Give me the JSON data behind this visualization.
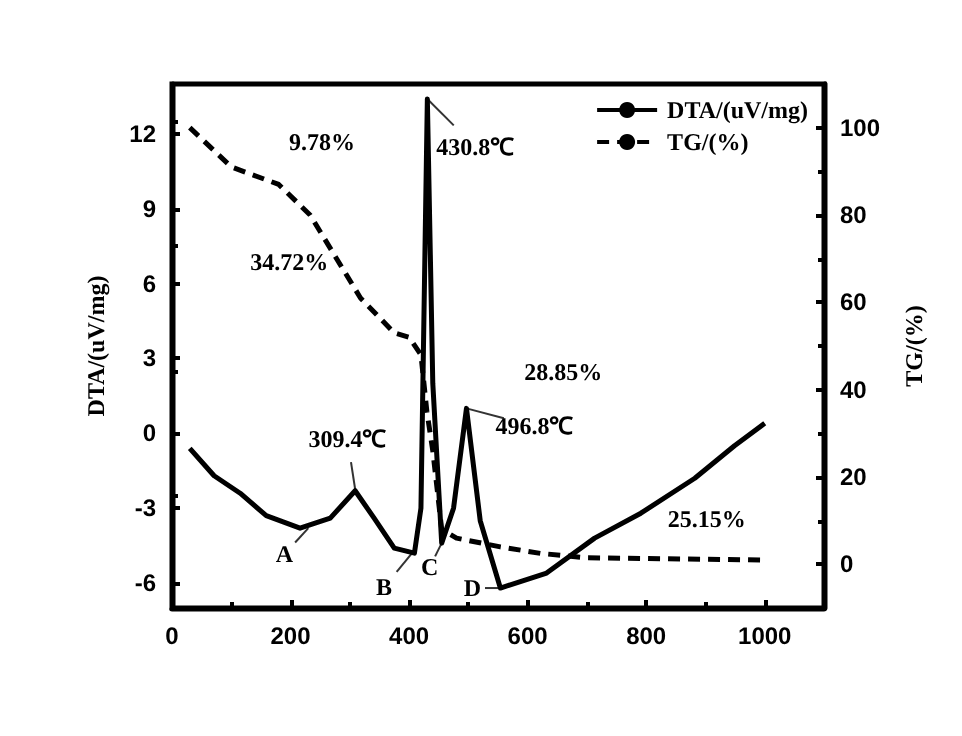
{
  "chart_data": {
    "type": "line",
    "ylabel": "DTA/(uV/mg)",
    "y2label": "TG/(%)",
    "xlim": [
      0,
      1100
    ],
    "xticks": [
      0,
      200,
      400,
      600,
      800,
      1000
    ],
    "ylim": [
      -7,
      14
    ],
    "yticks": [
      -6,
      -3,
      0,
      3,
      6,
      9,
      12
    ],
    "y2lim": [
      -10,
      110
    ],
    "y2ticks": [
      0,
      20,
      40,
      60,
      80,
      100
    ],
    "legend": "top right",
    "grid": false,
    "marker": "none",
    "series": [
      {
        "name": "DTA/(uV/mg)",
        "color": "#000000",
        "line_style": "solid",
        "x": [
          30,
          71,
          115,
          159,
          216,
          267,
          309,
          341,
          375,
          409,
          420,
          430.8,
          440,
          455,
          475,
          496.8,
          520,
          554,
          632,
          713,
          791,
          882,
          949,
          1000
        ],
        "values": [
          -0.6,
          -1.7,
          -2.4,
          -3.3,
          -3.8,
          -3.4,
          -2.3,
          -3.4,
          -4.6,
          -4.8,
          -3,
          13.4,
          2,
          -4.4,
          -3,
          1.0,
          -3.5,
          -6.2,
          -5.6,
          -4.2,
          -3.2,
          -1.8,
          -0.5,
          0.4
        ]
      },
      {
        "name": "TG/(%)",
        "color": "#000000",
        "line_style": "dashed",
        "axis": "y2",
        "x": [
          30,
          100,
          180,
          233,
          318,
          375,
          400,
          420,
          430,
          440,
          455,
          480,
          554,
          622,
          700,
          1000
        ],
        "values": [
          100,
          91,
          87,
          80,
          61,
          53,
          52,
          48,
          35,
          26,
          8,
          6,
          4,
          2.5,
          1.5,
          1
        ]
      }
    ],
    "annotations": [
      "9.78%",
      "34.72%",
      "28.85%",
      "25.15%",
      {
        "text": "309.4℃",
        "x": 309.4,
        "y": -2.3
      },
      {
        "text": "430.8℃",
        "x": 430.8,
        "y": 13.4
      },
      {
        "text": "496.8℃",
        "x": 496.8,
        "y": 1.0
      },
      {
        "text": "A",
        "x": 230,
        "y": -3.8
      },
      {
        "text": "B",
        "x": 405,
        "y": -4.8
      },
      {
        "text": "C",
        "x": 455,
        "y": -4.4
      },
      {
        "text": "D",
        "x": 554,
        "y": -6.2
      }
    ]
  }
}
